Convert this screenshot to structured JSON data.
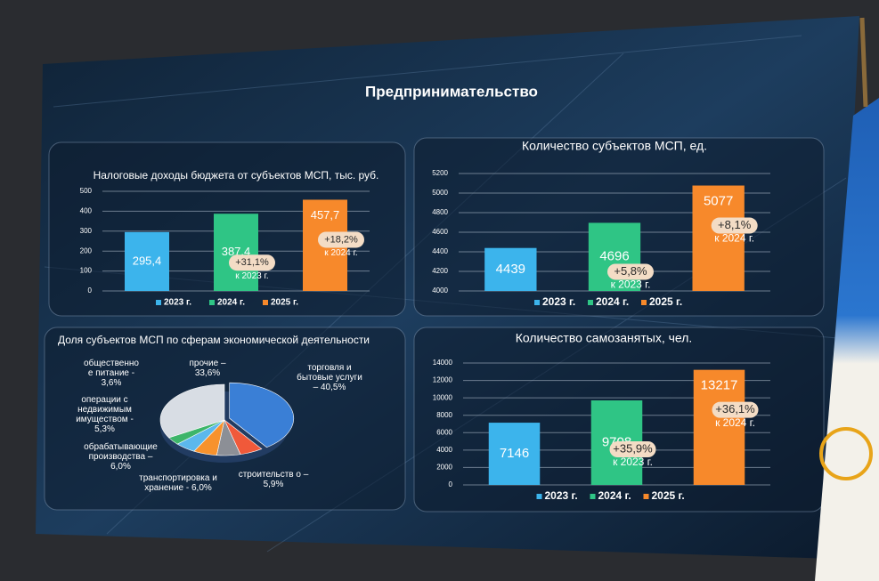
{
  "title": "Предпринимательство",
  "chart_data": [
    {
      "type": "bar",
      "title": "Налоговые доходы бюджета от субъектов МСП, тыс. руб.",
      "categories": [
        "2023 г.",
        "2024 г.",
        "2025 г."
      ],
      "values": [
        295.4,
        387.4,
        457.7
      ],
      "value_labels": [
        "295,4",
        "387,4",
        "457,7"
      ],
      "colors": [
        "#3cb4ec",
        "#2fc585",
        "#f7892b"
      ],
      "ylim": [
        0,
        500
      ],
      "yticks": [
        0,
        100,
        200,
        300,
        400,
        500
      ],
      "grid": true,
      "annotations": [
        [
          "+31,1%",
          "к 2023 г."
        ],
        [
          "+18,2%",
          "к 2024 г."
        ]
      ]
    },
    {
      "type": "bar",
      "title": "Количество субъектов МСП, ед.",
      "categories": [
        "2023 г.",
        "2024 г.",
        "2025 г."
      ],
      "values": [
        4439,
        4696,
        5077
      ],
      "colors": [
        "#3cb4ec",
        "#2fc585",
        "#f7892b"
      ],
      "ylim": [
        4000,
        5200
      ],
      "yticks": [
        4000,
        4200,
        4400,
        4600,
        4800,
        5000,
        5200
      ],
      "grid": true,
      "annotations": [
        [
          "+5,8%",
          "к 2023 г."
        ],
        [
          "+8,1%",
          "к 2024 г."
        ]
      ]
    },
    {
      "type": "pie",
      "title": "Доля субъектов МСП по сферам экономической деятельности",
      "categories": [
        "торговля и бытовые услуги – 40,5%",
        "строительств о – 5,9%",
        "транспортировка и хранение - 6,0%",
        "обрабатывающие производства – 6,0%",
        "операции с недвижимым имуществом - 5,3%",
        "общественно е питание - 3,6%",
        "прочие – 33,6%"
      ],
      "values": [
        40.5,
        5.9,
        6.0,
        6.0,
        5.3,
        3.6,
        33.6
      ],
      "colors": [
        "#3a7fd6",
        "#f0593a",
        "#8c8f96",
        "#f7922d",
        "#5cb8ec",
        "#3db56a",
        "#d8dde4"
      ]
    },
    {
      "type": "bar",
      "title": "Количество самозанятых, чел.",
      "categories": [
        "2023 г.",
        "2024 г.",
        "2025 г."
      ],
      "values": [
        7146,
        9708,
        13217
      ],
      "colors": [
        "#3cb4ec",
        "#2fc585",
        "#f7892b"
      ],
      "ylim": [
        0,
        14000
      ],
      "yticks": [
        0,
        2000,
        4000,
        6000,
        8000,
        10000,
        12000,
        14000
      ],
      "grid": true,
      "annotations": [
        [
          "+35,9%",
          "к 2023 г."
        ],
        [
          "+36,1%",
          "к 2024 г."
        ]
      ]
    }
  ]
}
